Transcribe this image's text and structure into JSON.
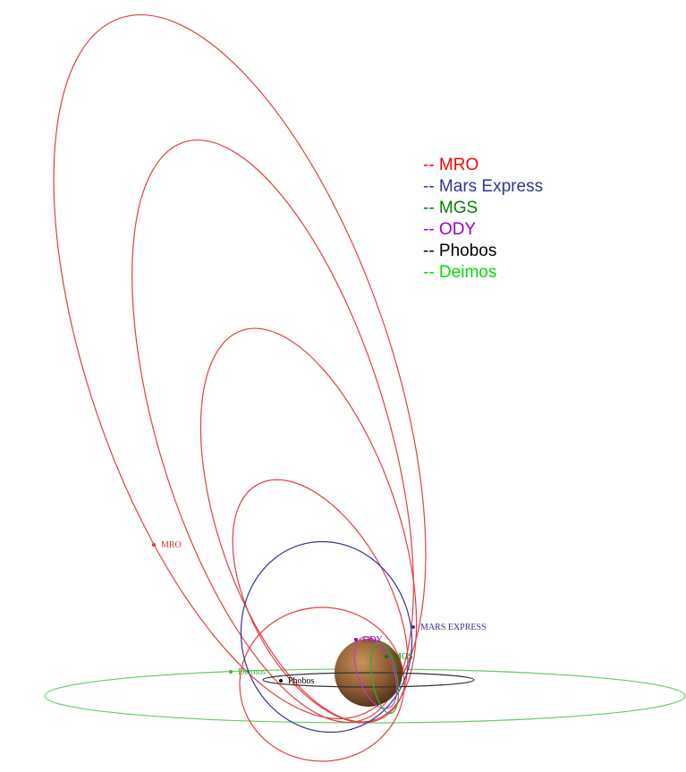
{
  "legend": [
    {
      "label": "-- MRO",
      "color": "#ff0000"
    },
    {
      "label": "-- Mars Express",
      "color": "#333399"
    },
    {
      "label": "-- MGS",
      "color": "#008000"
    },
    {
      "label": "-- ODY",
      "color": "#9900cc"
    },
    {
      "label": "-- Phobos",
      "color": "#000000"
    },
    {
      "label": "-- Deimos",
      "color": "#00dd00"
    }
  ],
  "labels": [
    {
      "text": "MRO",
      "color": "#dd3333"
    },
    {
      "text": "MARS EXPRESS",
      "color": "#333399"
    },
    {
      "text": "ODY",
      "color": "#9900cc"
    },
    {
      "text": "MGS",
      "color": "#008000"
    },
    {
      "text": "Deimos",
      "color": "#33bb33"
    },
    {
      "text": "Phobos",
      "color": "#000000"
    }
  ]
}
